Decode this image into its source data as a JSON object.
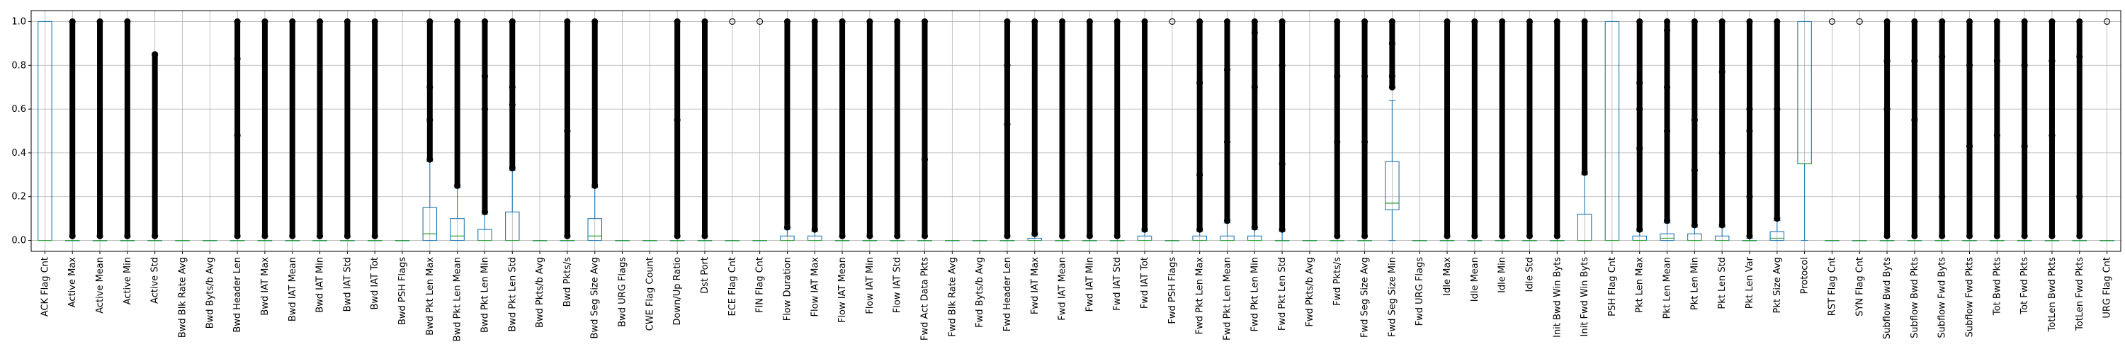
{
  "chart_data": {
    "type": "box",
    "title": "",
    "xlabel": "",
    "ylabel": "",
    "ylim": [
      -0.05,
      1.05
    ],
    "yticks": [
      "0.0",
      "0.2",
      "0.4",
      "0.6",
      "0.8",
      "1.0"
    ],
    "grid": true,
    "series": [
      {
        "name": "ACK Flag Cnt",
        "q1": 0,
        "med": 0,
        "q3": 1,
        "wlo": 0,
        "whi": 1,
        "fliers": []
      },
      {
        "name": "Active Max",
        "q1": 0,
        "med": 0,
        "q3": 0,
        "wlo": 0,
        "whi": 0,
        "fliers": [
          0.02,
          1.0
        ]
      },
      {
        "name": "Active Mean",
        "q1": 0,
        "med": 0,
        "q3": 0,
        "wlo": 0,
        "whi": 0,
        "fliers": [
          0.02,
          1.0
        ]
      },
      {
        "name": "Active Min",
        "q1": 0,
        "med": 0,
        "q3": 0,
        "wlo": 0,
        "whi": 0,
        "fliers": [
          0.02,
          1.0
        ]
      },
      {
        "name": "Active Std",
        "q1": 0,
        "med": 0,
        "q3": 0,
        "wlo": 0,
        "whi": 0,
        "fliers": [
          0.02,
          0.85
        ]
      },
      {
        "name": "Bwd Blk Rate Avg",
        "q1": 0,
        "med": 0,
        "q3": 0,
        "wlo": 0,
        "whi": 0,
        "fliers": []
      },
      {
        "name": "Bwd Byts/b Avg",
        "q1": 0,
        "med": 0,
        "q3": 0,
        "wlo": 0,
        "whi": 0,
        "fliers": []
      },
      {
        "name": "Bwd Header Len",
        "q1": 0,
        "med": 0,
        "q3": 0,
        "wlo": 0,
        "whi": 0,
        "fliers": [
          0.02,
          0.48,
          0.83,
          1.0
        ]
      },
      {
        "name": "Bwd IAT Max",
        "q1": 0,
        "med": 0,
        "q3": 0,
        "wlo": 0,
        "whi": 0,
        "fliers": [
          0.02,
          1.0
        ]
      },
      {
        "name": "Bwd IAT Mean",
        "q1": 0,
        "med": 0,
        "q3": 0,
        "wlo": 0,
        "whi": 0,
        "fliers": [
          0.02,
          1.0
        ]
      },
      {
        "name": "Bwd IAT Min",
        "q1": 0,
        "med": 0,
        "q3": 0,
        "wlo": 0,
        "whi": 0,
        "fliers": [
          0.02,
          1.0
        ]
      },
      {
        "name": "Bwd IAT Std",
        "q1": 0,
        "med": 0,
        "q3": 0,
        "wlo": 0,
        "whi": 0,
        "fliers": [
          0.02,
          1.0
        ]
      },
      {
        "name": "Bwd IAT Tot",
        "q1": 0,
        "med": 0,
        "q3": 0,
        "wlo": 0,
        "whi": 0,
        "fliers": [
          0.02,
          1.0
        ]
      },
      {
        "name": "Bwd PSH Flags",
        "q1": 0,
        "med": 0,
        "q3": 0,
        "wlo": 0,
        "whi": 0,
        "fliers": []
      },
      {
        "name": "Bwd Pkt Len Max",
        "q1": 0,
        "med": 0.03,
        "q3": 0.15,
        "wlo": 0,
        "whi": 0.36,
        "fliers": [
          0.37,
          0.55,
          0.7,
          1.0
        ]
      },
      {
        "name": "Bwd Pkt Len Mean",
        "q1": 0,
        "med": 0.02,
        "q3": 0.1,
        "wlo": 0,
        "whi": 0.24,
        "fliers": [
          0.25,
          1.0
        ]
      },
      {
        "name": "Bwd Pkt Len Min",
        "q1": 0,
        "med": 0,
        "q3": 0.05,
        "wlo": 0,
        "whi": 0.12,
        "fliers": [
          0.13,
          0.6,
          0.75,
          1.0
        ]
      },
      {
        "name": "Bwd Pkt Len Std",
        "q1": 0,
        "med": 0,
        "q3": 0.13,
        "wlo": 0,
        "whi": 0.32,
        "fliers": [
          0.33,
          0.62,
          0.7,
          1.0
        ]
      },
      {
        "name": "Bwd Pkts/b Avg",
        "q1": 0,
        "med": 0,
        "q3": 0,
        "wlo": 0,
        "whi": 0,
        "fliers": []
      },
      {
        "name": "Bwd Pkts/s",
        "q1": 0,
        "med": 0,
        "q3": 0,
        "wlo": 0,
        "whi": 0,
        "fliers": [
          0.02,
          0.2,
          0.5,
          1.0
        ]
      },
      {
        "name": "Bwd Seg Size Avg",
        "q1": 0,
        "med": 0.02,
        "q3": 0.1,
        "wlo": 0,
        "whi": 0.24,
        "fliers": [
          0.25,
          1.0
        ]
      },
      {
        "name": "Bwd URG Flags",
        "q1": 0,
        "med": 0,
        "q3": 0,
        "wlo": 0,
        "whi": 0,
        "fliers": []
      },
      {
        "name": "CWE Flag Count",
        "q1": 0,
        "med": 0,
        "q3": 0,
        "wlo": 0,
        "whi": 0,
        "fliers": []
      },
      {
        "name": "Down/Up Ratio",
        "q1": 0,
        "med": 0,
        "q3": 0,
        "wlo": 0,
        "whi": 0,
        "fliers": [
          0.02,
          0.55,
          1.0
        ]
      },
      {
        "name": "Dst Port",
        "q1": 0,
        "med": 0,
        "q3": 0,
        "wlo": 0,
        "whi": 0,
        "fliers": [
          0.02,
          1.0
        ]
      },
      {
        "name": "ECE Flag Cnt",
        "q1": 0,
        "med": 0,
        "q3": 0,
        "wlo": 0,
        "whi": 0,
        "fliers": [
          1.0
        ]
      },
      {
        "name": "FIN Flag Cnt",
        "q1": 0,
        "med": 0,
        "q3": 0,
        "wlo": 0,
        "whi": 0,
        "fliers": [
          1.0
        ]
      },
      {
        "name": "Flow Duration",
        "q1": 0,
        "med": 0,
        "q3": 0.02,
        "wlo": 0,
        "whi": 0.05,
        "fliers": [
          0.06,
          1.0
        ]
      },
      {
        "name": "Flow IAT Max",
        "q1": 0,
        "med": 0,
        "q3": 0.02,
        "wlo": 0,
        "whi": 0.04,
        "fliers": [
          0.05,
          1.0
        ]
      },
      {
        "name": "Flow IAT Mean",
        "q1": 0,
        "med": 0,
        "q3": 0,
        "wlo": 0,
        "whi": 0,
        "fliers": [
          0.02,
          1.0
        ]
      },
      {
        "name": "Flow IAT Min",
        "q1": 0,
        "med": 0,
        "q3": 0,
        "wlo": 0,
        "whi": 0,
        "fliers": [
          0.02,
          1.0
        ]
      },
      {
        "name": "Flow IAT Std",
        "q1": 0,
        "med": 0,
        "q3": 0,
        "wlo": 0,
        "whi": 0,
        "fliers": [
          0.02,
          1.0
        ]
      },
      {
        "name": "Fwd Act Data Pkts",
        "q1": 0,
        "med": 0,
        "q3": 0,
        "wlo": 0,
        "whi": 0,
        "fliers": [
          0.02,
          0.37,
          1.0
        ]
      },
      {
        "name": "Fwd Blk Rate Avg",
        "q1": 0,
        "med": 0,
        "q3": 0,
        "wlo": 0,
        "whi": 0,
        "fliers": []
      },
      {
        "name": "Fwd Byts/b Avg",
        "q1": 0,
        "med": 0,
        "q3": 0,
        "wlo": 0,
        "whi": 0,
        "fliers": []
      },
      {
        "name": "Fwd Header Len",
        "q1": 0,
        "med": 0,
        "q3": 0,
        "wlo": 0,
        "whi": 0,
        "fliers": [
          0.02,
          0.53,
          0.8,
          1.0
        ]
      },
      {
        "name": "Fwd IAT Max",
        "q1": 0,
        "med": 0,
        "q3": 0.01,
        "wlo": 0,
        "whi": 0.02,
        "fliers": [
          0.03,
          1.0
        ]
      },
      {
        "name": "Fwd IAT Mean",
        "q1": 0,
        "med": 0,
        "q3": 0,
        "wlo": 0,
        "whi": 0,
        "fliers": [
          0.02,
          1.0
        ]
      },
      {
        "name": "Fwd IAT Min",
        "q1": 0,
        "med": 0,
        "q3": 0,
        "wlo": 0,
        "whi": 0,
        "fliers": [
          0.02,
          1.0
        ]
      },
      {
        "name": "Fwd IAT Std",
        "q1": 0,
        "med": 0,
        "q3": 0,
        "wlo": 0,
        "whi": 0,
        "fliers": [
          0.02,
          1.0
        ]
      },
      {
        "name": "Fwd IAT Tot",
        "q1": 0,
        "med": 0,
        "q3": 0.02,
        "wlo": 0,
        "whi": 0.04,
        "fliers": [
          0.05,
          1.0
        ]
      },
      {
        "name": "Fwd PSH Flags",
        "q1": 0,
        "med": 0,
        "q3": 0,
        "wlo": 0,
        "whi": 0,
        "fliers": [
          1.0
        ]
      },
      {
        "name": "Fwd Pkt Len Max",
        "q1": 0,
        "med": 0,
        "q3": 0.02,
        "wlo": 0,
        "whi": 0.04,
        "fliers": [
          0.05,
          0.3,
          0.72,
          1.0
        ]
      },
      {
        "name": "Fwd Pkt Len Mean",
        "q1": 0,
        "med": 0,
        "q3": 0.02,
        "wlo": 0,
        "whi": 0.08,
        "fliers": [
          0.09,
          0.45,
          0.78,
          1.0
        ]
      },
      {
        "name": "Fwd Pkt Len Min",
        "q1": 0,
        "med": 0,
        "q3": 0.02,
        "wlo": 0,
        "whi": 0.05,
        "fliers": [
          0.06,
          0.7,
          0.95,
          1.0
        ]
      },
      {
        "name": "Fwd Pkt Len Std",
        "q1": 0,
        "med": 0,
        "q3": 0,
        "wlo": 0,
        "whi": 0.04,
        "fliers": [
          0.05,
          0.35,
          0.8,
          1.0
        ]
      },
      {
        "name": "Fwd Pkts/b Avg",
        "q1": 0,
        "med": 0,
        "q3": 0,
        "wlo": 0,
        "whi": 0,
        "fliers": []
      },
      {
        "name": "Fwd Pkts/s",
        "q1": 0,
        "med": 0,
        "q3": 0,
        "wlo": 0,
        "whi": 0,
        "fliers": [
          0.02,
          0.45,
          0.75,
          1.0
        ]
      },
      {
        "name": "Fwd Seg Size Avg",
        "q1": 0,
        "med": 0,
        "q3": 0,
        "wlo": 0,
        "whi": 0,
        "fliers": [
          0.02,
          0.45,
          0.75,
          1.0
        ]
      },
      {
        "name": "Fwd Seg Size Min",
        "q1": 0.14,
        "med": 0.17,
        "q3": 0.36,
        "wlo": 0,
        "whi": 0.64,
        "fliers": [
          0.7,
          0.75,
          0.9,
          1.0
        ]
      },
      {
        "name": "Fwd URG Flags",
        "q1": 0,
        "med": 0,
        "q3": 0,
        "wlo": 0,
        "whi": 0,
        "fliers": []
      },
      {
        "name": "Idle Max",
        "q1": 0,
        "med": 0,
        "q3": 0,
        "wlo": 0,
        "whi": 0,
        "fliers": [
          0.02,
          1.0
        ]
      },
      {
        "name": "Idle Mean",
        "q1": 0,
        "med": 0,
        "q3": 0,
        "wlo": 0,
        "whi": 0,
        "fliers": [
          0.02,
          1.0
        ]
      },
      {
        "name": "Idle Min",
        "q1": 0,
        "med": 0,
        "q3": 0,
        "wlo": 0,
        "whi": 0,
        "fliers": [
          0.02,
          1.0
        ]
      },
      {
        "name": "Idle Std",
        "q1": 0,
        "med": 0,
        "q3": 0,
        "wlo": 0,
        "whi": 0,
        "fliers": [
          0.02,
          1.0
        ]
      },
      {
        "name": "Init Bwd Win Byts",
        "q1": 0,
        "med": 0,
        "q3": 0,
        "wlo": 0,
        "whi": 0,
        "fliers": [
          0.02,
          1.0
        ]
      },
      {
        "name": "Init Fwd Win Byts",
        "q1": 0,
        "med": 0,
        "q3": 0.12,
        "wlo": 0,
        "whi": 0.3,
        "fliers": [
          0.31,
          1.0
        ]
      },
      {
        "name": "PSH Flag Cnt",
        "q1": 0,
        "med": 0,
        "q3": 1,
        "wlo": 0,
        "whi": 1,
        "fliers": []
      },
      {
        "name": "Pkt Len Max",
        "q1": 0,
        "med": 0,
        "q3": 0.02,
        "wlo": 0,
        "whi": 0.04,
        "fliers": [
          0.05,
          0.42,
          0.6,
          0.72,
          1.0
        ]
      },
      {
        "name": "Pkt Len Mean",
        "q1": 0,
        "med": 0.01,
        "q3": 0.03,
        "wlo": 0,
        "whi": 0.08,
        "fliers": [
          0.09,
          0.5,
          0.7,
          0.96,
          1.0
        ]
      },
      {
        "name": "Pkt Len Min",
        "q1": 0,
        "med": 0,
        "q3": 0.03,
        "wlo": 0,
        "whi": 0.06,
        "fliers": [
          0.07,
          0.32,
          0.55,
          1.0
        ]
      },
      {
        "name": "Pkt Len Std",
        "q1": 0,
        "med": 0,
        "q3": 0.02,
        "wlo": 0,
        "whi": 0.06,
        "fliers": [
          0.07,
          0.4,
          0.77,
          1.0
        ]
      },
      {
        "name": "Pkt Len Var",
        "q1": 0,
        "med": 0,
        "q3": 0,
        "wlo": 0,
        "whi": 0.01,
        "fliers": [
          0.02,
          0.2,
          0.5,
          0.6,
          1.0
        ]
      },
      {
        "name": "Pkt Size Avg",
        "q1": 0,
        "med": 0.01,
        "q3": 0.04,
        "wlo": 0,
        "whi": 0.09,
        "fliers": [
          0.1,
          0.6,
          1.0
        ]
      },
      {
        "name": "Protocol",
        "q1": 0.35,
        "med": 0.35,
        "q3": 1,
        "wlo": 0,
        "whi": 1,
        "fliers": []
      },
      {
        "name": "RST Flag Cnt",
        "q1": 0,
        "med": 0,
        "q3": 0,
        "wlo": 0,
        "whi": 0,
        "fliers": [
          1.0
        ]
      },
      {
        "name": "SYN Flag Cnt",
        "q1": 0,
        "med": 0,
        "q3": 0,
        "wlo": 0,
        "whi": 0,
        "fliers": [
          1.0
        ]
      },
      {
        "name": "Subflow Bwd Byts",
        "q1": 0,
        "med": 0,
        "q3": 0,
        "wlo": 0,
        "whi": 0,
        "fliers": [
          0.02,
          0.6,
          0.82,
          1.0
        ]
      },
      {
        "name": "Subflow Bwd Pkts",
        "q1": 0,
        "med": 0,
        "q3": 0,
        "wlo": 0,
        "whi": 0,
        "fliers": [
          0.02,
          0.55,
          0.82,
          1.0
        ]
      },
      {
        "name": "Subflow Fwd Byts",
        "q1": 0,
        "med": 0,
        "q3": 0,
        "wlo": 0,
        "whi": 0,
        "fliers": [
          0.02,
          0.2,
          0.84,
          1.0
        ]
      },
      {
        "name": "Subflow Fwd Pkts",
        "q1": 0,
        "med": 0,
        "q3": 0,
        "wlo": 0,
        "whi": 0,
        "fliers": [
          0.02,
          0.43,
          0.8,
          1.0
        ]
      },
      {
        "name": "Tot Bwd Pkts",
        "q1": 0,
        "med": 0,
        "q3": 0,
        "wlo": 0,
        "whi": 0,
        "fliers": [
          0.02,
          0.48,
          0.82,
          1.0
        ]
      },
      {
        "name": "Tot Fwd Pkts",
        "q1": 0,
        "med": 0,
        "q3": 0,
        "wlo": 0,
        "whi": 0,
        "fliers": [
          0.02,
          0.43,
          0.8,
          1.0
        ]
      },
      {
        "name": "TotLen Bwd Pkts",
        "q1": 0,
        "med": 0,
        "q3": 0,
        "wlo": 0,
        "whi": 0,
        "fliers": [
          0.02,
          0.48,
          0.82,
          1.0
        ]
      },
      {
        "name": "TotLen Fwd Pkts",
        "q1": 0,
        "med": 0,
        "q3": 0,
        "wlo": 0,
        "whi": 0,
        "fliers": [
          0.02,
          0.2,
          0.84,
          1.0
        ]
      },
      {
        "name": "URG Flag Cnt",
        "q1": 0,
        "med": 0,
        "q3": 0,
        "wlo": 0,
        "whi": 0,
        "fliers": [
          1.0
        ]
      }
    ]
  }
}
